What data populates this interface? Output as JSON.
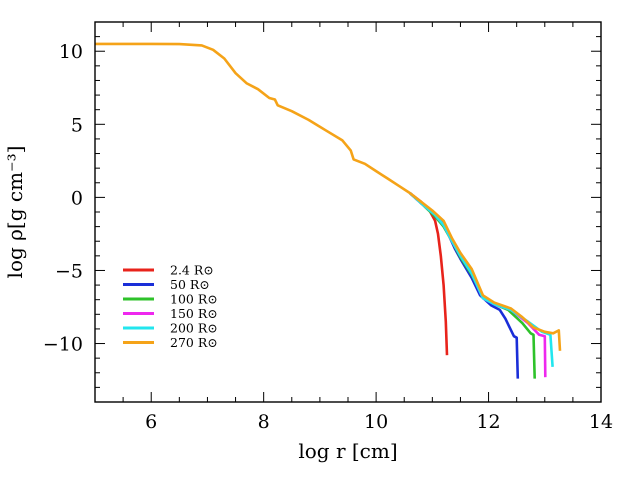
{
  "chart_data": {
    "type": "line",
    "xlabel": "log r [cm]",
    "ylabel": "log ρ[g cm⁻³]",
    "xlim": [
      5,
      14
    ],
    "ylim": [
      -14,
      12
    ],
    "x_ticks": [
      6,
      8,
      10,
      12,
      14
    ],
    "y_ticks": [
      10,
      5,
      0,
      -5,
      -10
    ],
    "grid": false,
    "legend_position": "lower-left",
    "series": [
      {
        "name": "2.4 R⊙",
        "color": "#e8231b",
        "points": [
          [
            10.6,
            0.3
          ],
          [
            10.8,
            -0.3
          ],
          [
            10.95,
            -0.9
          ],
          [
            11.05,
            -1.6
          ],
          [
            11.1,
            -2.5
          ],
          [
            11.15,
            -4
          ],
          [
            11.2,
            -6
          ],
          [
            11.24,
            -8.5
          ],
          [
            11.26,
            -10.8
          ]
        ]
      },
      {
        "name": "50 R⊙",
        "color": "#1a2ed8",
        "points": [
          [
            10.6,
            0.3
          ],
          [
            10.8,
            -0.4
          ],
          [
            11,
            -1
          ],
          [
            11.2,
            -1.8
          ],
          [
            11.4,
            -3.5
          ],
          [
            11.5,
            -4.2
          ],
          [
            11.7,
            -5.5
          ],
          [
            11.85,
            -6.7
          ],
          [
            12.05,
            -7.4
          ],
          [
            12.2,
            -7.7
          ],
          [
            12.3,
            -8.3
          ],
          [
            12.45,
            -9.5
          ],
          [
            12.5,
            -9.6
          ],
          [
            12.52,
            -12.4
          ]
        ]
      },
      {
        "name": "100 R⊙",
        "color": "#2ec22a",
        "points": [
          [
            10.6,
            0.3
          ],
          [
            10.8,
            -0.4
          ],
          [
            11.05,
            -1.3
          ],
          [
            11.2,
            -2
          ],
          [
            11.35,
            -3
          ],
          [
            11.5,
            -4.1
          ],
          [
            11.7,
            -5.3
          ],
          [
            11.9,
            -6.8
          ],
          [
            12.1,
            -7.3
          ],
          [
            12.35,
            -7.7
          ],
          [
            12.6,
            -8.6
          ],
          [
            12.75,
            -9.3
          ],
          [
            12.8,
            -9.4
          ],
          [
            12.82,
            -12.4
          ]
        ]
      },
      {
        "name": "150 R⊙",
        "color": "#ee28ee",
        "points": [
          [
            10.6,
            0.3
          ],
          [
            10.8,
            -0.4
          ],
          [
            11.05,
            -1.2
          ],
          [
            11.2,
            -1.9
          ],
          [
            11.35,
            -3
          ],
          [
            11.5,
            -4
          ],
          [
            11.7,
            -5.2
          ],
          [
            11.9,
            -6.9
          ],
          [
            12.1,
            -7.3
          ],
          [
            12.4,
            -7.7
          ],
          [
            12.7,
            -8.6
          ],
          [
            12.9,
            -9.4
          ],
          [
            13,
            -9.5
          ],
          [
            13.01,
            -12.3
          ]
        ]
      },
      {
        "name": "200 R⊙",
        "color": "#22e6ee",
        "points": [
          [
            10.6,
            0.3
          ],
          [
            10.8,
            -0.4
          ],
          [
            11.05,
            -1.2
          ],
          [
            11.2,
            -1.9
          ],
          [
            11.35,
            -3
          ],
          [
            11.5,
            -4
          ],
          [
            11.7,
            -5.2
          ],
          [
            11.9,
            -6.9
          ],
          [
            12.1,
            -7.3
          ],
          [
            12.4,
            -7.7
          ],
          [
            12.7,
            -8.5
          ],
          [
            12.95,
            -9.2
          ],
          [
            13.1,
            -9.4
          ],
          [
            13.14,
            -11.6
          ]
        ]
      },
      {
        "name": "270 R⊙",
        "color": "#f5a318",
        "points": [
          [
            5,
            10.5
          ],
          [
            5.5,
            10.5
          ],
          [
            6,
            10.5
          ],
          [
            6.5,
            10.49
          ],
          [
            6.9,
            10.4
          ],
          [
            7.1,
            10.1
          ],
          [
            7.3,
            9.5
          ],
          [
            7.5,
            8.5
          ],
          [
            7.7,
            7.8
          ],
          [
            7.9,
            7.4
          ],
          [
            8.1,
            6.8
          ],
          [
            8.2,
            6.7
          ],
          [
            8.25,
            6.3
          ],
          [
            8.5,
            5.9
          ],
          [
            8.8,
            5.3
          ],
          [
            9.1,
            4.6
          ],
          [
            9.4,
            3.9
          ],
          [
            9.55,
            3.2
          ],
          [
            9.6,
            2.6
          ],
          [
            9.8,
            2.3
          ],
          [
            10,
            1.8
          ],
          [
            10.2,
            1.3
          ],
          [
            10.4,
            0.8
          ],
          [
            10.6,
            0.3
          ],
          [
            10.8,
            -0.3
          ],
          [
            11,
            -0.9
          ],
          [
            11.2,
            -1.6
          ],
          [
            11.35,
            -2.8
          ],
          [
            11.5,
            -3.8
          ],
          [
            11.7,
            -4.9
          ],
          [
            11.9,
            -6.7
          ],
          [
            12.1,
            -7.2
          ],
          [
            12.4,
            -7.6
          ],
          [
            12.6,
            -8.2
          ],
          [
            12.8,
            -8.9
          ],
          [
            13,
            -9.2
          ],
          [
            13.15,
            -9.3
          ],
          [
            13.25,
            -9.1
          ],
          [
            13.27,
            -10.5
          ]
        ]
      }
    ]
  }
}
